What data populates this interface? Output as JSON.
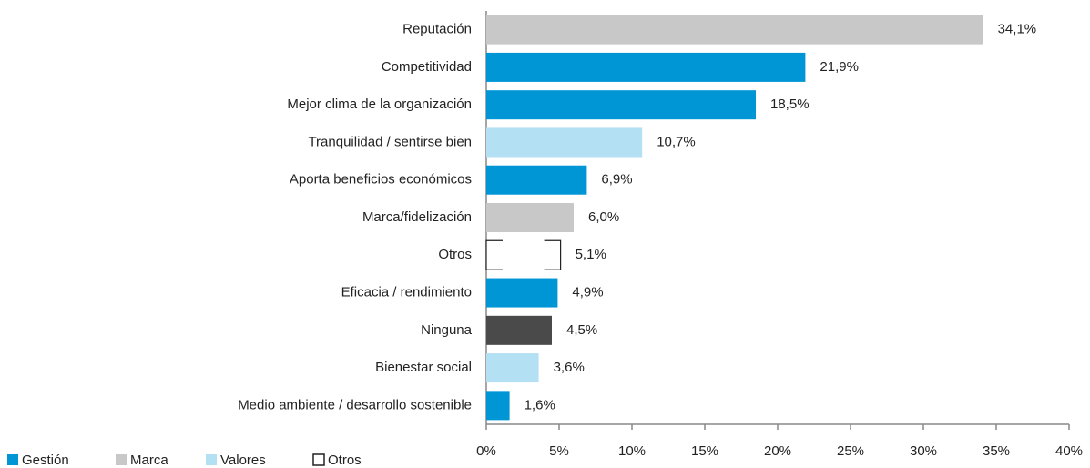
{
  "chart_data": {
    "type": "hbar",
    "categories": [
      "Reputación",
      "Competitividad",
      "Mejor clima de la organización",
      "Tranquilidad / sentirse bien",
      "Aporta beneficios económicos",
      "Marca/fidelización",
      "Otros",
      "Eficacia / rendimiento",
      "Ninguna",
      "Bienestar social",
      "Medio ambiente / desarrollo sostenible"
    ],
    "values": [
      34.1,
      21.9,
      18.5,
      10.7,
      6.9,
      6.0,
      5.1,
      4.9,
      4.5,
      3.6,
      1.6
    ],
    "value_labels": [
      "34,1%",
      "21,9%",
      "18,5%",
      "10,7%",
      "6,9%",
      "6,0%",
      "5,1%",
      "4,9%",
      "4,5%",
      "3,6%",
      "1,6%"
    ],
    "colors": [
      "#c8c8c8",
      "#0096d6",
      "#0096d6",
      "#b3e0f2",
      "#0096d6",
      "#c8c8c8",
      "#ffffff",
      "#0096d6",
      "#4a4a4a",
      "#b3e0f2",
      "#0096d6"
    ],
    "xlim": [
      0,
      40
    ],
    "xticks": [
      {
        "value": 0,
        "label": "0%"
      },
      {
        "value": 5,
        "label": "5%"
      },
      {
        "value": 10,
        "label": "10%"
      },
      {
        "value": 15,
        "label": "15%"
      },
      {
        "value": 20,
        "label": "20%"
      },
      {
        "value": 25,
        "label": "25%"
      },
      {
        "value": 30,
        "label": "30%"
      },
      {
        "value": 35,
        "label": "35%"
      },
      {
        "value": 40,
        "label": "40%"
      }
    ],
    "legend": [
      {
        "name": "Gestión",
        "color": "#0096d6"
      },
      {
        "name": "Marca",
        "color": "#c8c8c8"
      },
      {
        "name": "Valores",
        "color": "#b3e0f2"
      },
      {
        "name": "Otros",
        "color": "#ffffff"
      }
    ]
  }
}
